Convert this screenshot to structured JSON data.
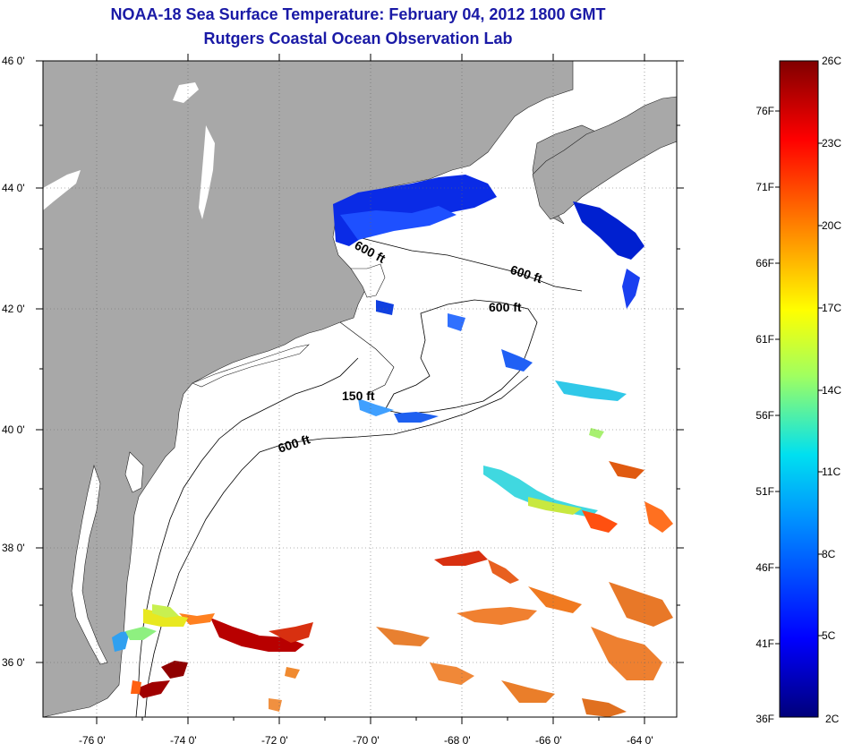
{
  "title": "NOAA-18 Sea Surface Temperature:  February 04, 2012 1800 GMT",
  "subtitle": "Rutgers Coastal Ocean Observation Lab",
  "lat_labels": [
    "46 0'",
    "44 0'",
    "42 0'",
    "40 0'",
    "38 0'",
    "36 0'"
  ],
  "lon_labels": [
    "-76 0'",
    "-74 0'",
    "-72 0'",
    "-70 0'",
    "-68 0'",
    "-66 0'",
    "-64 0'"
  ],
  "contour_labels": [
    "600 ft",
    "600 ft",
    "600 ft",
    "150 ft",
    "600 ft"
  ],
  "colorbar": {
    "fahrenheit": [
      "76F",
      "71F",
      "66F",
      "61F",
      "56F",
      "51F",
      "46F",
      "41F",
      "36F"
    ],
    "celsius": [
      "26C",
      "23C",
      "20C",
      "17C",
      "14C",
      "11C",
      "8C",
      "5C",
      "2C"
    ],
    "min_c": 2,
    "max_c": 26
  },
  "colors": {
    "land": "#a8a8a8",
    "ocean": "#ffffff",
    "title": "#1a1aa6"
  }
}
